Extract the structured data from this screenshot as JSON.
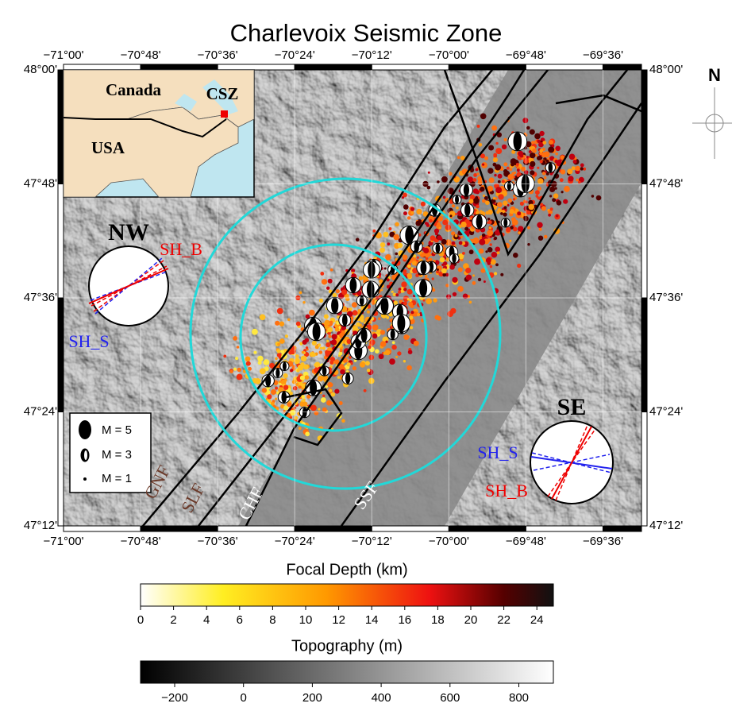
{
  "title": "Charlevoix Seismic Zone",
  "map": {
    "lon_labels": [
      "−71°00'",
      "−70°48'",
      "−70°36'",
      "−70°24'",
      "−70°12'",
      "−70°00'",
      "−69°48'",
      "−69°36'"
    ],
    "lat_labels": [
      "48°00'",
      "47°48'",
      "47°36'",
      "47°24'",
      "47°12'"
    ],
    "inset": {
      "canada": "Canada",
      "usa": "USA",
      "csz": "CSZ"
    },
    "nw_rose": {
      "title": "NW",
      "sh_b": "SH_B",
      "sh_s": "SH_S"
    },
    "se_rose": {
      "title": "SE",
      "sh_s": "SH_S",
      "sh_b": "SH_B"
    },
    "legend": [
      "M = 5",
      "M = 3",
      "M = 1"
    ],
    "faults": [
      "GNF",
      "SLF",
      "CHF",
      "SSF"
    ],
    "north": "N"
  },
  "depth_colorbar": {
    "label": "Focal Depth (km)",
    "ticks": [
      "0",
      "2",
      "4",
      "6",
      "8",
      "10",
      "12",
      "14",
      "16",
      "18",
      "20",
      "22",
      "24"
    ]
  },
  "topography_colorbar": {
    "label": "Topography (m)",
    "ticks": [
      "−200",
      "0",
      "200",
      "400",
      "600",
      "800"
    ]
  }
}
